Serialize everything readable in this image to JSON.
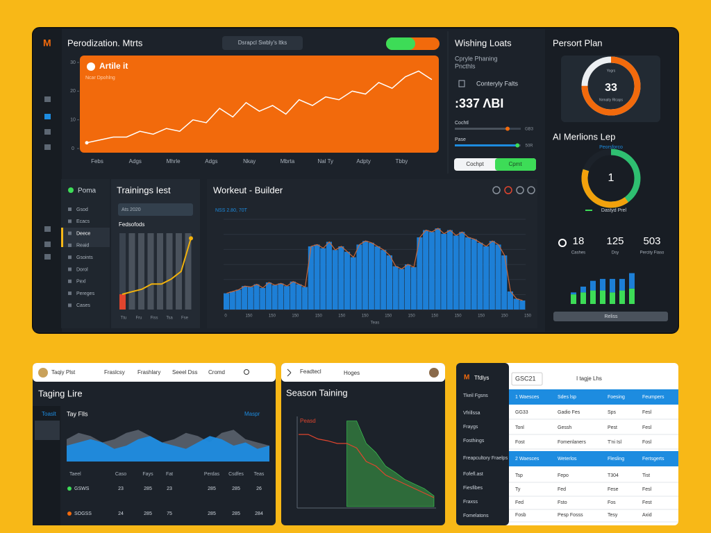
{
  "header": {
    "logo": "M",
    "title": "Perodization. Mtrts",
    "search": "Dsrapcl Swbly's ltks"
  },
  "main_chart": {
    "type": "line",
    "title": "Artile it",
    "subtitle": "Ncar Dpohlng",
    "ylim": [
      0,
      30
    ],
    "yticks": [
      0,
      10,
      20,
      30
    ],
    "x_labels": [
      "Febs",
      "Adgs",
      "Mhrle",
      "Adgs",
      "Nkay",
      "Mbrta",
      "Nal Ty",
      "Adpty",
      "Tbby"
    ],
    "values": [
      2,
      3,
      4,
      4,
      6,
      5,
      7,
      6,
      10,
      9,
      14,
      11,
      16,
      13,
      15,
      12,
      17,
      15,
      18,
      17,
      20,
      19,
      23,
      21,
      25,
      27,
      24
    ],
    "color": "#ffffff"
  },
  "loads": {
    "title": "Wishing Loats",
    "subtitle": [
      "Cpryle Phaning",
      "Pncthls"
    ],
    "label": "Conteryly Falts",
    "big": ":337 ΛBI",
    "sliders": [
      {
        "name": "Cochtl",
        "value": 80,
        "label": "GB3"
      },
      {
        "name": "Pase",
        "value": 95,
        "label": "50R"
      }
    ],
    "buttons": [
      "Cochpt",
      "Cpmt"
    ]
  },
  "plan": {
    "title": "Persort Plan",
    "donut": {
      "value": 33,
      "ring_percent": 75,
      "top": "Yogrs",
      "bottom": "Nrmalty Rlcaps"
    },
    "title2": "AI Merlions Lep",
    "subtitle2": "Peorsforco",
    "donut2": {
      "value": 1,
      "ring_percent": 80
    },
    "footer2": "Dastyd Prel",
    "stats": [
      {
        "value": 18,
        "label": "Cashes"
      },
      {
        "value": 125,
        "label": "Dsy"
      },
      {
        "value": 503,
        "label": "Percity Fiaso"
      }
    ],
    "bars": {
      "type": "bar",
      "ylim": [
        0,
        18
      ],
      "series": [
        {
          "name": "Base",
          "color": "#3ddc57",
          "values": [
            5,
            6,
            7,
            7,
            6,
            7,
            8
          ]
        },
        {
          "name": "Extra",
          "color": "#1d7fd6",
          "values": [
            1,
            3,
            5,
            6,
            7,
            6,
            8
          ]
        }
      ]
    },
    "button": "Reliss"
  },
  "menu": {
    "title": "Poma",
    "items": [
      "Gsod",
      "Ecacs",
      "Deece",
      "Reaid",
      "Gsoints",
      "Dorol",
      "Pexl",
      "Pereges",
      "Cases"
    ],
    "selected": 2
  },
  "trainings": {
    "title": "Trainings Iest",
    "input": "Ats 2020",
    "label": "Fedsofods",
    "ylim": [
      0,
      15
    ],
    "values": [
      3,
      3.5,
      4,
      5,
      5,
      6,
      7.5,
      14
    ],
    "x_labels": [
      "Ttu",
      "Fru",
      "Fiss",
      "Tsa",
      "Fse"
    ]
  },
  "workout": {
    "title": "Workeut - Builder",
    "subtitle": "NSS 2.80, 70T",
    "ylim": [
      0,
      100
    ],
    "values": [
      18,
      20,
      22,
      26,
      25,
      28,
      24,
      30,
      27,
      29,
      26,
      31,
      28,
      25,
      70,
      72,
      68,
      75,
      66,
      70,
      64,
      58,
      72,
      76,
      74,
      70,
      66,
      60,
      48,
      45,
      50,
      47,
      80,
      88,
      86,
      90,
      84,
      88,
      82,
      86,
      80,
      78,
      74,
      70,
      76,
      72,
      60,
      20,
      12,
      10
    ],
    "x_labels": [
      "0",
      "150",
      "150",
      "150",
      "150",
      "150",
      "150",
      "150",
      "150",
      "150",
      "150",
      "150",
      "150",
      "150"
    ],
    "x_title": "Teas"
  },
  "panel1": {
    "nav": [
      "Taqiy Plst",
      "Fraslcsy",
      "Frashlary",
      "Seeel Dss",
      "Cromd"
    ],
    "title": "Taging Lire",
    "side": "Toaslt",
    "label": "Tay Flls",
    "link": "Maspr",
    "area": {
      "ylim": [
        0,
        12
      ],
      "series": [
        {
          "name": "Load",
          "color": "#6b7480",
          "values": [
            7,
            9,
            8,
            6,
            7,
            9,
            10,
            8,
            6,
            7,
            9,
            8,
            6,
            9,
            10,
            7,
            6,
            5
          ]
        },
        {
          "name": "Fitness",
          "color": "#1d8ce0",
          "values": [
            5,
            6,
            7,
            6,
            4,
            5,
            7,
            8,
            6,
            5,
            4,
            6,
            8,
            7,
            5,
            6,
            4,
            5
          ]
        }
      ]
    },
    "columns": [
      "Taeel",
      "Caso",
      "Fays",
      "Fat",
      "Perdas",
      "Csdfes",
      "Teas"
    ],
    "rows": [
      [
        "GSWS",
        "23",
        "285",
        "23",
        "285",
        "285",
        "26"
      ],
      [
        "SOGSS",
        "24",
        "285",
        "75",
        "285",
        "285",
        "284"
      ]
    ]
  },
  "panel2": {
    "nav": [
      "Feadtecl",
      "Hoges"
    ],
    "title": "Season Taining",
    "label": "Peasd",
    "ylim": [
      0,
      10
    ],
    "series": [
      {
        "name": "Peasd",
        "color": "#e0452e",
        "values": [
          8,
          8,
          7.5,
          7.3,
          7,
          7,
          6.5,
          5,
          4.5,
          3.5,
          3,
          2.5,
          2,
          1.5,
          1
        ]
      },
      {
        "name": "Fitness",
        "color": "#2e6b3a",
        "values": [
          null,
          null,
          null,
          null,
          null,
          9.5,
          9.5,
          7,
          6,
          4.5,
          3.8,
          3,
          2.5,
          2,
          1.2
        ]
      }
    ]
  },
  "panel3": {
    "logo": "M",
    "title": "Tfdlys",
    "search": "GSC21",
    "tab": "I tagje Lhs",
    "side": [
      "Tkeil Fgsns",
      "Vfrillssa",
      "Fraygs",
      "Fosthings",
      "Freapcultory Fraelps",
      "Fofefl.ast",
      "Fiesfibes",
      "Fraxss",
      "Fomelatons"
    ],
    "rows": [
      {
        "cells": [
          "1 Waesces",
          "Sdes lsp",
          "Foesing",
          "Feumpers"
        ],
        "selected": true
      },
      {
        "cells": [
          "GG33",
          "Gadio Fes",
          "Sps",
          "Fesl"
        ],
        "selected": false
      },
      {
        "cells": [
          "Tonl",
          "Gessh",
          "Pest",
          "Fesl"
        ],
        "selected": false
      },
      {
        "cells": [
          "Fost",
          "Fomenlaners",
          "T'ni Isl",
          "Fosl"
        ],
        "selected": false
      },
      {
        "cells": [
          "2 Waesces",
          "Weterlos",
          "Flesling",
          "Fertsgerts"
        ],
        "selected": true
      },
      {
        "cells": [
          "Tsp",
          "Fepo",
          "T304",
          "Tist"
        ],
        "selected": false
      },
      {
        "cells": [
          "Ty",
          "Fed",
          "Fese",
          "Fesl"
        ],
        "selected": false
      },
      {
        "cells": [
          "Fed",
          "Fsto",
          "Fos",
          "Fest"
        ],
        "selected": false
      },
      {
        "cells": [
          "Fosb",
          "Pesp Fosss",
          "Tesy",
          "Axid"
        ],
        "selected": false
      }
    ]
  }
}
